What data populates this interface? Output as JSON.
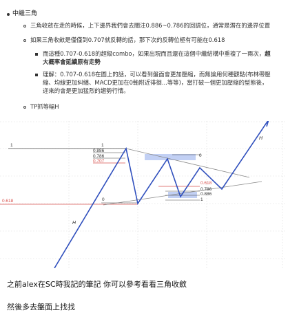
{
  "notes": {
    "heading": "中繼三角",
    "item1": "三角收斂在走的時候，上下邊界我們會去關注0.886~0.786的回調位，通常是潛在的邊界位置",
    "item2": "如果三角收斂是僅僅到0.707就反轉的話，那下次的反轉位極有可能在0.618",
    "sub1_line1_normal": "而這種0.707-0.618的超級combo，如果出現而且還在這個中繼結構中重複了一兩次，",
    "sub1_line1_bold": "超",
    "sub1_line2_bold": "大概率會延續原有走勢",
    "sub2_line1": "理解：0.707-0.618在圖上的話，可以看到盤面會更加壓縮，而無論用何種觀點(布林帶壓",
    "sub2_line2": "縮、均線更加糾纏、MACD更加在0軸附近徘徊...等等)，當打破一個更加壓縮的型態後，",
    "sub2_line3": "迎來的會是更加猛烈的趨勢行情。",
    "item3": "TP抓等幅H"
  },
  "chart_labels": {
    "left_one": "1",
    "left_0618": "0.618",
    "top_one": "1",
    "top_0886": "0.886",
    "top_0786": "0.786",
    "top_0707": "0.707",
    "mid_zero": "0",
    "right_zero": "0",
    "r_0618": "0.618",
    "r_0786": "0.786",
    "r_0886": "0.886",
    "r_one": "1",
    "h_left": "H",
    "h_right": "H"
  },
  "colors": {
    "wave": "#2f4fbd",
    "level_red": "#d9534f",
    "zone_blue": "#b7c8f2",
    "trendline": "#888888"
  },
  "messages": {
    "msg1": "之前alex在SC時我記的筆記 你可以參考看看三角收斂",
    "msg2": "然後多去盤面上找找"
  }
}
